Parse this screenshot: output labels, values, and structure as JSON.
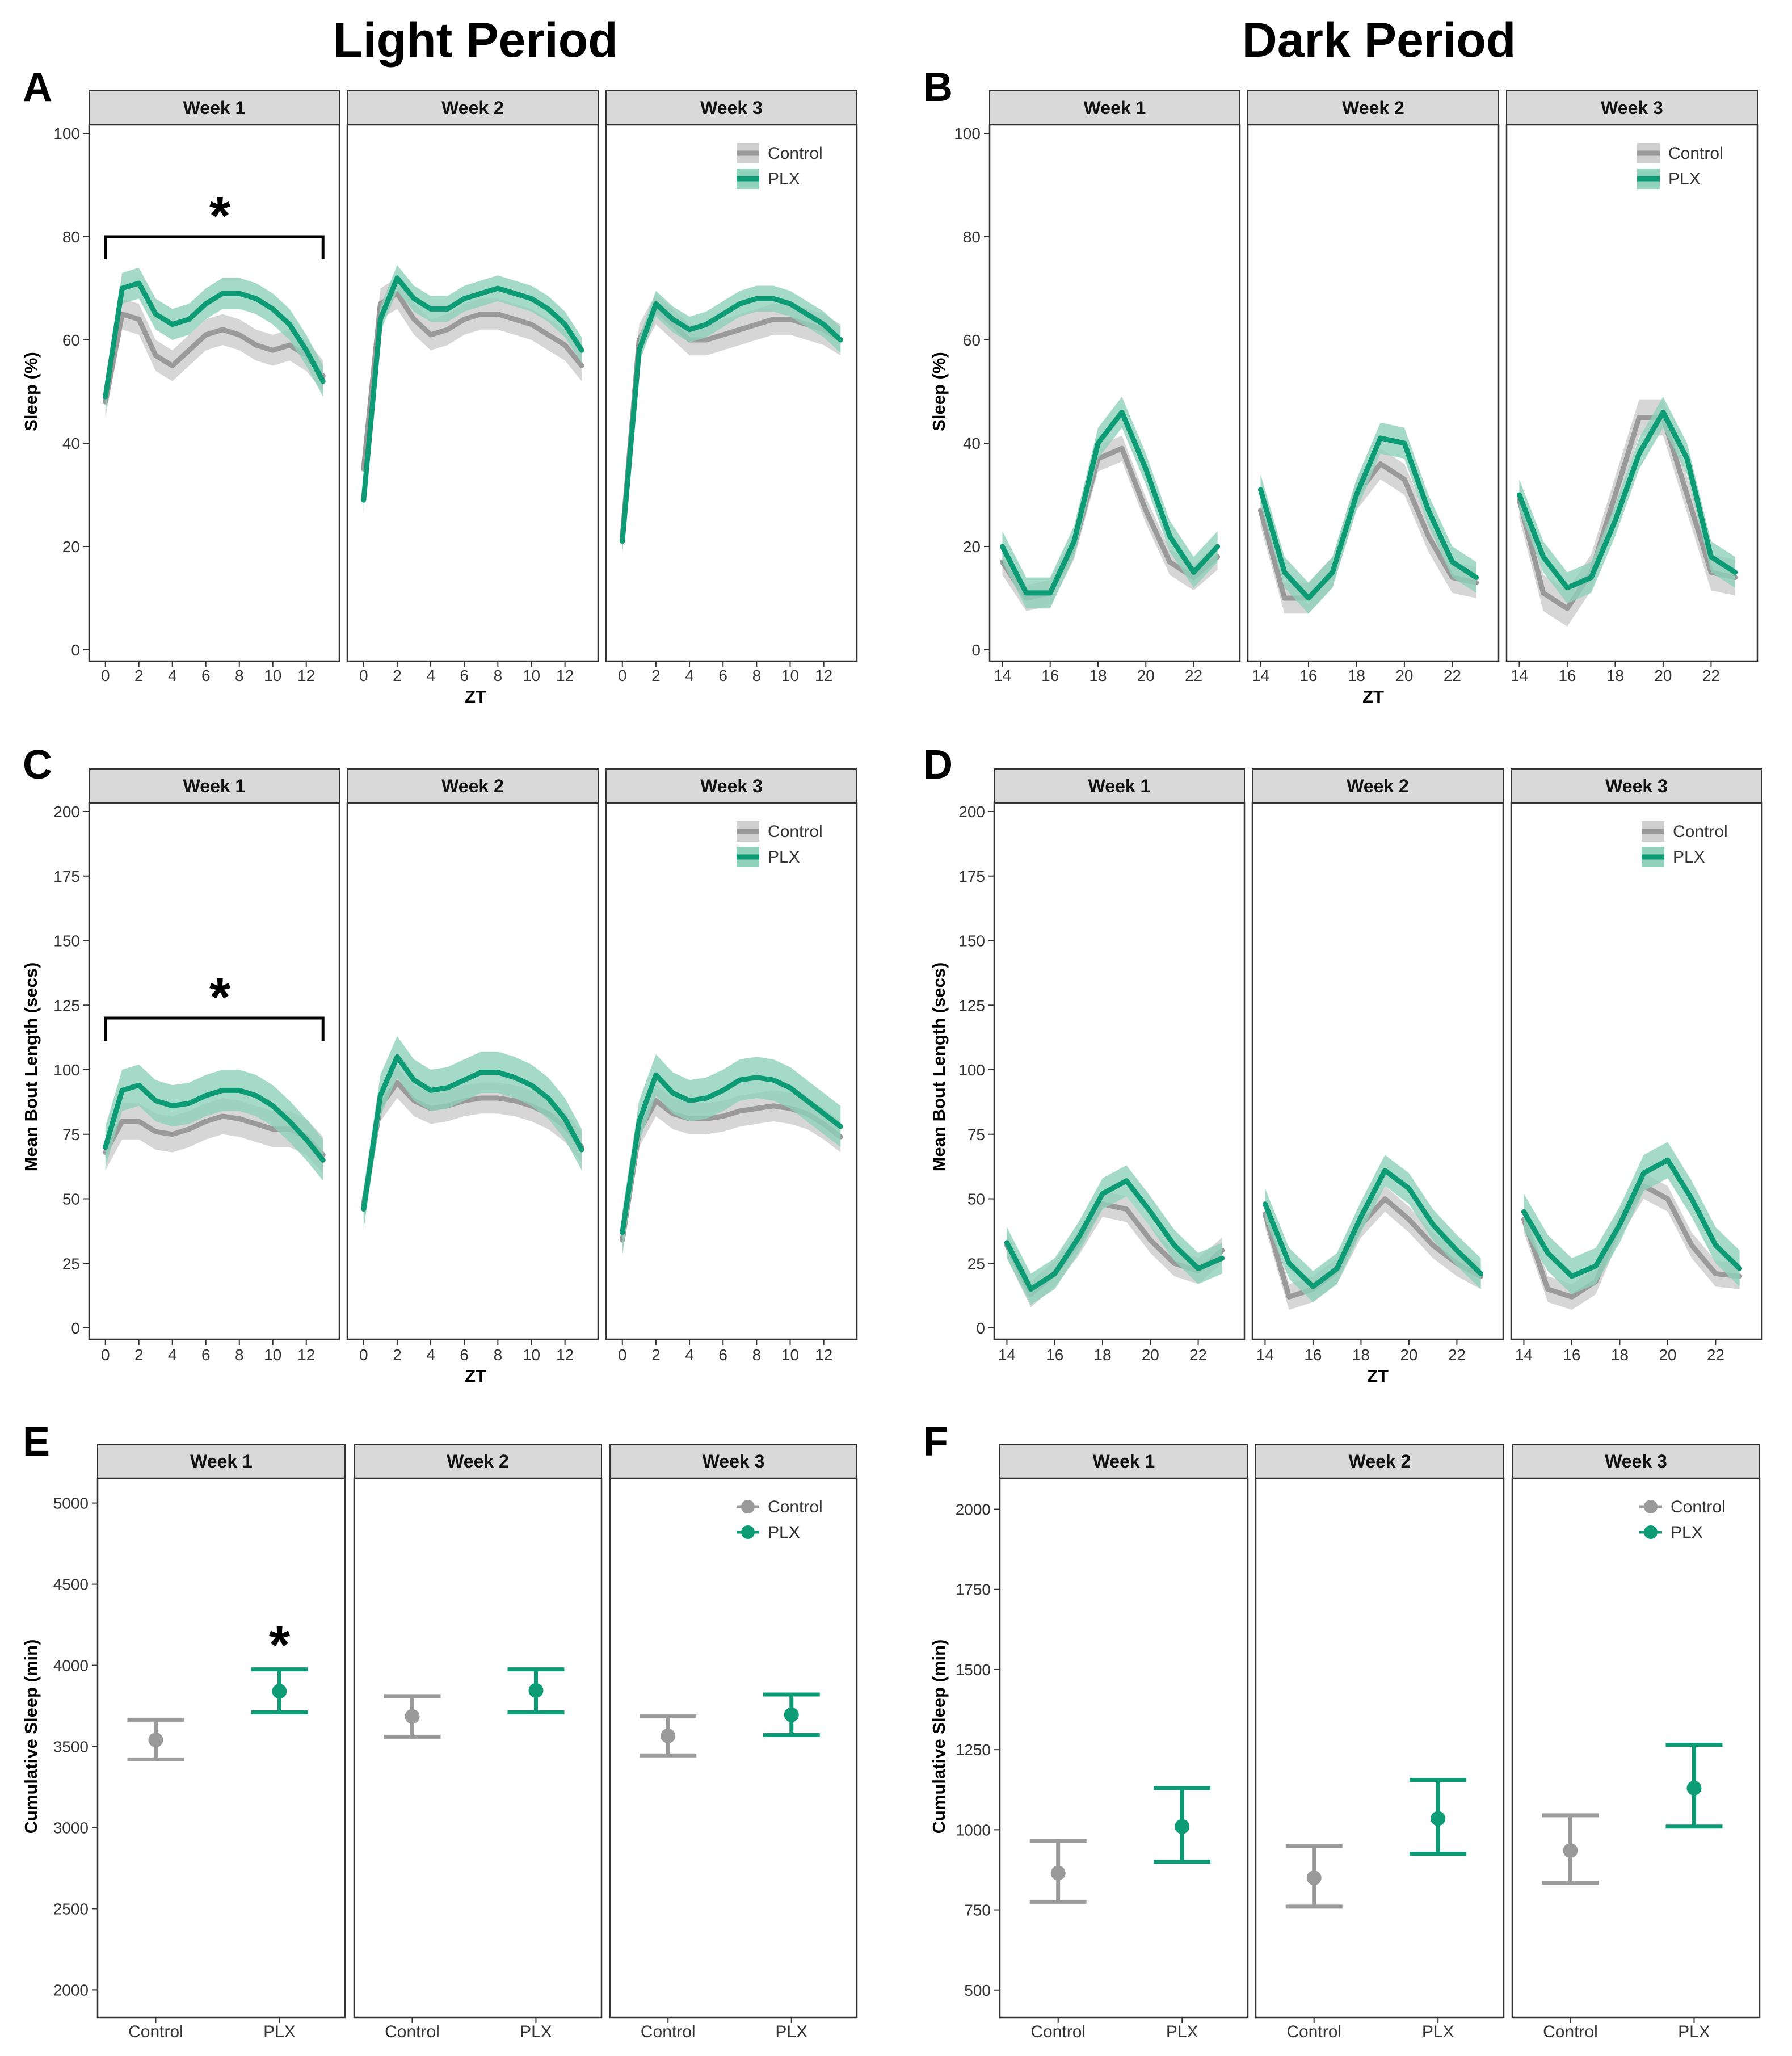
{
  "figure": {
    "column_titles": [
      "Light Period",
      "Dark Period"
    ],
    "legend": {
      "control_label": "Control",
      "plx_label": "PLX"
    },
    "colors": {
      "control_line": "#9a9a9a",
      "control_band": "#cfcfcf",
      "plx_line": "#0c9b74",
      "plx_band": "#8fd1ba",
      "strip": "#d9d9d9",
      "panel_border": "#333333"
    },
    "significance_marker": "*"
  },
  "chart_data": [
    {
      "panel": "A",
      "type": "line",
      "period": "Light Period",
      "ylabel": "Sleep (%)",
      "xlabel": "ZT",
      "ylim": [
        0,
        100
      ],
      "yticks": [
        0,
        20,
        40,
        60,
        80,
        100
      ],
      "xticks": [
        0,
        2,
        4,
        6,
        8,
        10,
        12
      ],
      "xlim": [
        -0.5,
        13.5
      ],
      "facets": [
        "Week 1",
        "Week 2",
        "Week 3"
      ],
      "x": [
        0,
        1,
        2,
        3,
        4,
        5,
        6,
        7,
        8,
        9,
        10,
        11,
        12,
        13
      ],
      "weeks": [
        {
          "control": [
            48,
            65,
            64,
            57,
            55,
            58,
            61,
            62,
            61,
            59,
            58,
            59,
            57,
            53
          ],
          "control_se": 3,
          "plx": [
            49,
            70,
            71,
            65,
            63,
            64,
            67,
            69,
            69,
            68,
            66,
            63,
            58,
            52
          ],
          "plx_se": 3
        },
        {
          "control": [
            35,
            67,
            69,
            64,
            61,
            62,
            64,
            65,
            65,
            64,
            63,
            61,
            59,
            55
          ],
          "control_se": 3,
          "plx": [
            29,
            64,
            72,
            68,
            66,
            66,
            68,
            69,
            70,
            69,
            68,
            66,
            63,
            58
          ],
          "plx_se": 2.5
        },
        {
          "control": [
            22,
            60,
            66,
            63,
            60,
            60,
            61,
            62,
            63,
            64,
            64,
            63,
            62,
            60
          ],
          "control_se": 3,
          "plx": [
            21,
            58,
            67,
            64,
            62,
            63,
            65,
            67,
            68,
            68,
            67,
            65,
            63,
            60
          ],
          "plx_se": 2.5
        }
      ],
      "significance": {
        "week": 1,
        "from_x": 0,
        "to_x": 13,
        "at_y": 80
      }
    },
    {
      "panel": "B",
      "type": "line",
      "period": "Dark Period",
      "ylabel": "Sleep (%)",
      "xlabel": "ZT",
      "ylim": [
        0,
        100
      ],
      "yticks": [
        0,
        20,
        40,
        60,
        80,
        100
      ],
      "xticks": [
        14,
        16,
        18,
        20,
        22
      ],
      "xlim": [
        13.8,
        23.6
      ],
      "facets": [
        "Week 1",
        "Week 2",
        "Week 3"
      ],
      "x": [
        14,
        15,
        16,
        17,
        18,
        19,
        20,
        21,
        22,
        23
      ],
      "weeks": [
        {
          "control": [
            17,
            10,
            11,
            20,
            37,
            39,
            27,
            17,
            14,
            18
          ],
          "control_se": 2.5,
          "plx": [
            20,
            11,
            11,
            21,
            40,
            46,
            35,
            22,
            15,
            20
          ],
          "plx_se": 3
        },
        {
          "control": [
            27,
            10,
            10,
            15,
            30,
            36,
            33,
            22,
            14,
            13
          ],
          "control_se": 3,
          "plx": [
            31,
            15,
            10,
            15,
            30,
            41,
            40,
            27,
            17,
            14
          ],
          "plx_se": 3
        },
        {
          "control": [
            29,
            11,
            8,
            15,
            30,
            45,
            45,
            30,
            15,
            14
          ],
          "control_se": 3.5,
          "plx": [
            30,
            18,
            12,
            14,
            25,
            38,
            46,
            37,
            18,
            15
          ],
          "plx_se": 3
        }
      ]
    },
    {
      "panel": "C",
      "type": "line",
      "period": "Light Period",
      "ylabel": "Mean Bout Length (secs)",
      "xlabel": "ZT",
      "ylim": [
        0,
        200
      ],
      "yticks": [
        0,
        25,
        50,
        75,
        100,
        125,
        150,
        175,
        200
      ],
      "xticks": [
        0,
        2,
        4,
        6,
        8,
        10,
        12
      ],
      "xlim": [
        -0.5,
        13.5
      ],
      "facets": [
        "Week 1",
        "Week 2",
        "Week 3"
      ],
      "x": [
        0,
        1,
        2,
        3,
        4,
        5,
        6,
        7,
        8,
        9,
        10,
        11,
        12,
        13
      ],
      "weeks": [
        {
          "control": [
            68,
            80,
            80,
            76,
            75,
            77,
            80,
            82,
            81,
            79,
            77,
            77,
            74,
            67
          ],
          "control_se": 7,
          "plx": [
            70,
            92,
            94,
            88,
            86,
            87,
            90,
            92,
            92,
            90,
            86,
            80,
            73,
            65
          ],
          "plx_se": 8
        },
        {
          "control": [
            48,
            86,
            95,
            88,
            85,
            86,
            88,
            89,
            89,
            88,
            86,
            83,
            78,
            70
          ],
          "control_se": 6,
          "plx": [
            46,
            90,
            105,
            96,
            92,
            93,
            96,
            99,
            99,
            97,
            94,
            89,
            81,
            69
          ],
          "plx_se": 8
        },
        {
          "control": [
            34,
            76,
            88,
            83,
            81,
            81,
            82,
            84,
            85,
            86,
            85,
            83,
            79,
            74
          ],
          "control_se": 6,
          "plx": [
            37,
            80,
            98,
            91,
            88,
            89,
            92,
            96,
            97,
            96,
            93,
            88,
            83,
            78
          ],
          "plx_se": 8
        }
      ],
      "significance": {
        "week": 1,
        "from_x": 0,
        "to_x": 13,
        "at_y": 120
      }
    },
    {
      "panel": "D",
      "type": "line",
      "period": "Dark Period",
      "ylabel": "Mean Bout Length (secs)",
      "xlabel": "ZT",
      "ylim": [
        0,
        200
      ],
      "yticks": [
        0,
        25,
        50,
        75,
        100,
        125,
        150,
        175,
        200
      ],
      "xticks": [
        14,
        16,
        18,
        20,
        22
      ],
      "xlim": [
        13.8,
        23.6
      ],
      "facets": [
        "Week 1",
        "Week 2",
        "Week 3"
      ],
      "x": [
        14,
        15,
        16,
        17,
        18,
        19,
        20,
        21,
        22,
        23
      ],
      "weeks": [
        {
          "control": [
            32,
            13,
            21,
            33,
            48,
            46,
            34,
            25,
            22,
            30
          ],
          "control_se": 5,
          "plx": [
            33,
            15,
            21,
            35,
            52,
            57,
            45,
            32,
            23,
            27
          ],
          "plx_se": 6
        },
        {
          "control": [
            44,
            12,
            15,
            22,
            40,
            50,
            42,
            32,
            25,
            20
          ],
          "control_se": 5,
          "plx": [
            48,
            25,
            16,
            23,
            43,
            61,
            54,
            40,
            30,
            21
          ],
          "plx_se": 6
        },
        {
          "control": [
            42,
            15,
            12,
            18,
            40,
            55,
            50,
            32,
            21,
            20
          ],
          "control_se": 5,
          "plx": [
            45,
            29,
            20,
            24,
            40,
            60,
            65,
            50,
            32,
            23
          ],
          "plx_se": 7
        }
      ]
    },
    {
      "panel": "E",
      "type": "errorbar",
      "period": "Light Period",
      "ylabel": "Cumulative Sleep (min)",
      "ylim": [
        1900,
        5100
      ],
      "yticks": [
        2000,
        2500,
        3000,
        3500,
        4000,
        4500,
        5000
      ],
      "facets": [
        "Week 1",
        "Week 2",
        "Week 3"
      ],
      "categories": [
        "Control",
        "PLX"
      ],
      "weeks": [
        {
          "control": {
            "mean": 3540,
            "low": 3420,
            "high": 3665
          },
          "plx": {
            "mean": 3840,
            "low": 3710,
            "high": 3975
          }
        },
        {
          "control": {
            "mean": 3685,
            "low": 3560,
            "high": 3810
          },
          "plx": {
            "mean": 3845,
            "low": 3710,
            "high": 3975
          }
        },
        {
          "control": {
            "mean": 3565,
            "low": 3445,
            "high": 3685
          },
          "plx": {
            "mean": 3695,
            "low": 3570,
            "high": 3820
          }
        }
      ],
      "significance": {
        "week": 1,
        "category": "PLX"
      }
    },
    {
      "panel": "F",
      "type": "errorbar",
      "period": "Dark Period",
      "ylabel": "Cumulative Sleep (min)",
      "ylim": [
        450,
        2070
      ],
      "yticks": [
        500,
        750,
        1000,
        1250,
        1500,
        1750,
        2000
      ],
      "facets": [
        "Week 1",
        "Week 2",
        "Week 3"
      ],
      "categories": [
        "Control",
        "PLX"
      ],
      "weeks": [
        {
          "control": {
            "mean": 865,
            "low": 775,
            "high": 965
          },
          "plx": {
            "mean": 1010,
            "low": 900,
            "high": 1130
          }
        },
        {
          "control": {
            "mean": 850,
            "low": 760,
            "high": 950
          },
          "plx": {
            "mean": 1035,
            "low": 925,
            "high": 1155
          }
        },
        {
          "control": {
            "mean": 935,
            "low": 835,
            "high": 1045
          },
          "plx": {
            "mean": 1130,
            "low": 1010,
            "high": 1265
          }
        }
      ]
    }
  ]
}
